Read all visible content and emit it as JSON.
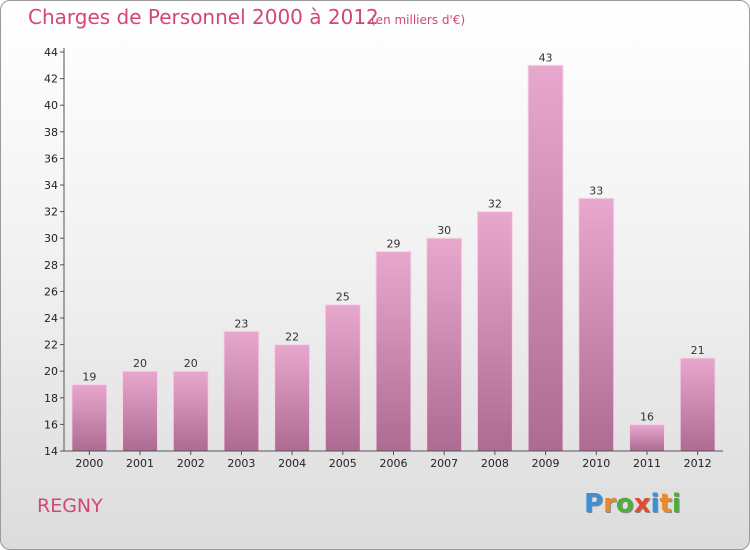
{
  "header": {
    "title": "Charges de Personnel 2000 à 2012",
    "unit": "(en milliers d'€)"
  },
  "footer": {
    "commune": "REGNY",
    "logo_text": "Proxiti"
  },
  "colors": {
    "title": "#d4457a",
    "bar_top": "#e8a8cd",
    "bar_bottom": "#ae6b92",
    "logo_letters": [
      "#3d8fd6",
      "#e8892b",
      "#4fae3a",
      "#e34b2f",
      "#3d8fd6",
      "#e8892b",
      "#4fae3a"
    ]
  },
  "chart_data": {
    "type": "bar",
    "title": "Charges de Personnel 2000 à 2012",
    "subtitle": "(en milliers d'€)",
    "categories": [
      "2000",
      "2001",
      "2002",
      "2003",
      "2004",
      "2005",
      "2006",
      "2007",
      "2008",
      "2009",
      "2010",
      "2011",
      "2012"
    ],
    "values": [
      19,
      20,
      20,
      23,
      22,
      25,
      29,
      30,
      32,
      43,
      33,
      16,
      21
    ],
    "ylim": [
      14,
      44
    ],
    "yticks": [
      14,
      16,
      18,
      20,
      22,
      24,
      26,
      28,
      30,
      32,
      34,
      36,
      38,
      40,
      42,
      44
    ],
    "grid": false,
    "data_labels": true
  }
}
